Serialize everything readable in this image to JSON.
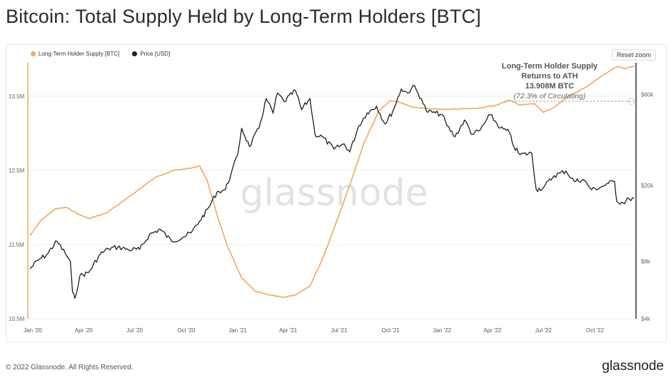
{
  "title": "Bitcoin: Total Supply Held by Long-Term Holders [BTC]",
  "reset_zoom": "Reset zoom",
  "legend": [
    {
      "label": "Long-Term Holder Supply [BTC]",
      "color": "#f0a85e"
    },
    {
      "label": "Price [USD]",
      "color": "#1e1e1e"
    }
  ],
  "watermark": "glassnode",
  "annotation": {
    "line1": "Long-Term Holder Supply",
    "line2": "Returns to ATH",
    "line3": "13.908M BTC",
    "line4": "(72.3% of Circulating)"
  },
  "footer": {
    "copyright": "© 2022 Glassnode. All Rights Reserved.",
    "logo": "glassnode"
  },
  "chart_data": {
    "type": "line",
    "x_ticks": [
      "Jan '20",
      "Apr '20",
      "Jul '20",
      "Oct '20",
      "Jan '21",
      "Apr '21",
      "Jul '21",
      "Oct '21",
      "Jan '22",
      "Apr '22",
      "Jul '22",
      "Oct '22"
    ],
    "y_left_ticks": [
      "10.5M",
      "11.5M",
      "12.5M",
      "13.5M"
    ],
    "y_left_tick_values": [
      10.5,
      11.5,
      12.5,
      13.5
    ],
    "y_left_range": [
      10.5,
      13.95
    ],
    "y_right_ticks": [
      "$4k",
      "$8k",
      "$20k",
      "$60k"
    ],
    "y_right_tick_values": [
      4000,
      8000,
      20000,
      60000
    ],
    "y_right_scale": "log",
    "y_right_range": [
      4000,
      88000
    ],
    "series": [
      {
        "name": "Long-Term Holder Supply [BTC]",
        "axis": "left",
        "color": "#f0a85e",
        "x": [
          "2019-12-27",
          "2020-01-15",
          "2020-02-10",
          "2020-03-01",
          "2020-03-25",
          "2020-04-10",
          "2020-05-10",
          "2020-06-10",
          "2020-07-10",
          "2020-08-10",
          "2020-09-10",
          "2020-10-10",
          "2020-10-25",
          "2020-11-08",
          "2020-11-25",
          "2020-12-15",
          "2021-01-08",
          "2021-02-01",
          "2021-02-25",
          "2021-03-25",
          "2021-04-15",
          "2021-05-10",
          "2021-06-01",
          "2021-06-25",
          "2021-07-20",
          "2021-08-15",
          "2021-09-10",
          "2021-10-01",
          "2021-10-20",
          "2021-11-10",
          "2021-12-10",
          "2022-01-10",
          "2022-02-10",
          "2022-03-10",
          "2022-04-10",
          "2022-05-01",
          "2022-05-20",
          "2022-06-15",
          "2022-07-01",
          "2022-07-20",
          "2022-08-15",
          "2022-09-15",
          "2022-10-15",
          "2022-11-10",
          "2022-11-25",
          "2022-12-10"
        ],
        "values": [
          11.62,
          11.82,
          11.98,
          12.0,
          11.9,
          11.85,
          11.92,
          12.08,
          12.25,
          12.42,
          12.5,
          12.53,
          12.56,
          12.35,
          11.9,
          11.45,
          11.05,
          10.87,
          10.82,
          10.79,
          10.82,
          10.94,
          11.3,
          11.78,
          12.3,
          12.88,
          13.3,
          13.44,
          13.41,
          13.35,
          13.33,
          13.32,
          13.33,
          13.34,
          13.38,
          13.45,
          13.38,
          13.4,
          13.28,
          13.35,
          13.5,
          13.62,
          13.78,
          13.9,
          13.87,
          13.91
        ]
      },
      {
        "name": "Price [USD]",
        "axis": "right",
        "color": "#1e1e1e",
        "x": [
          "2019-12-27",
          "2020-01-10",
          "2020-01-25",
          "2020-02-13",
          "2020-02-28",
          "2020-03-08",
          "2020-03-12",
          "2020-03-16",
          "2020-03-25",
          "2020-04-10",
          "2020-04-30",
          "2020-05-15",
          "2020-06-01",
          "2020-06-20",
          "2020-07-10",
          "2020-07-27",
          "2020-08-15",
          "2020-09-05",
          "2020-09-25",
          "2020-10-10",
          "2020-10-25",
          "2020-11-10",
          "2020-11-25",
          "2020-12-10",
          "2020-12-20",
          "2021-01-01",
          "2021-01-08",
          "2021-01-22",
          "2021-02-08",
          "2021-02-21",
          "2021-03-05",
          "2021-03-13",
          "2021-03-25",
          "2021-04-14",
          "2021-04-25",
          "2021-05-10",
          "2021-05-19",
          "2021-06-01",
          "2021-06-22",
          "2021-07-10",
          "2021-07-20",
          "2021-08-05",
          "2021-08-20",
          "2021-09-06",
          "2021-09-21",
          "2021-10-05",
          "2021-10-20",
          "2021-11-01",
          "2021-11-10",
          "2021-11-25",
          "2021-12-04",
          "2021-12-20",
          "2022-01-01",
          "2022-01-10",
          "2022-01-24",
          "2022-02-10",
          "2022-02-24",
          "2022-03-10",
          "2022-03-28",
          "2022-04-15",
          "2022-05-01",
          "2022-05-09",
          "2022-05-20",
          "2022-06-10",
          "2022-06-18",
          "2022-07-01",
          "2022-07-20",
          "2022-08-10",
          "2022-08-25",
          "2022-09-10",
          "2022-09-25",
          "2022-10-10",
          "2022-10-25",
          "2022-11-05",
          "2022-11-09",
          "2022-11-20",
          "2022-12-01",
          "2022-12-10"
        ],
        "values": [
          7300,
          8100,
          8600,
          10200,
          8800,
          8000,
          5500,
          5100,
          6700,
          7000,
          8700,
          9300,
          9500,
          9200,
          9250,
          11000,
          11800,
          10200,
          10700,
          11300,
          13000,
          15300,
          18500,
          19000,
          23000,
          29000,
          40000,
          32000,
          40000,
          57000,
          48000,
          61000,
          55000,
          63000,
          50000,
          57000,
          37000,
          36000,
          31000,
          33000,
          30000,
          41000,
          48000,
          52000,
          42000,
          49000,
          64000,
          61000,
          67000,
          57000,
          49000,
          48000,
          47000,
          41000,
          36000,
          44000,
          37000,
          39000,
          47000,
          40000,
          38000,
          32000,
          29000,
          29500,
          19000,
          19500,
          22500,
          23800,
          21000,
          21500,
          19000,
          19500,
          20500,
          21000,
          16500,
          16200,
          17000,
          17100
        ]
      }
    ],
    "annotation_value": "13.908M BTC"
  }
}
